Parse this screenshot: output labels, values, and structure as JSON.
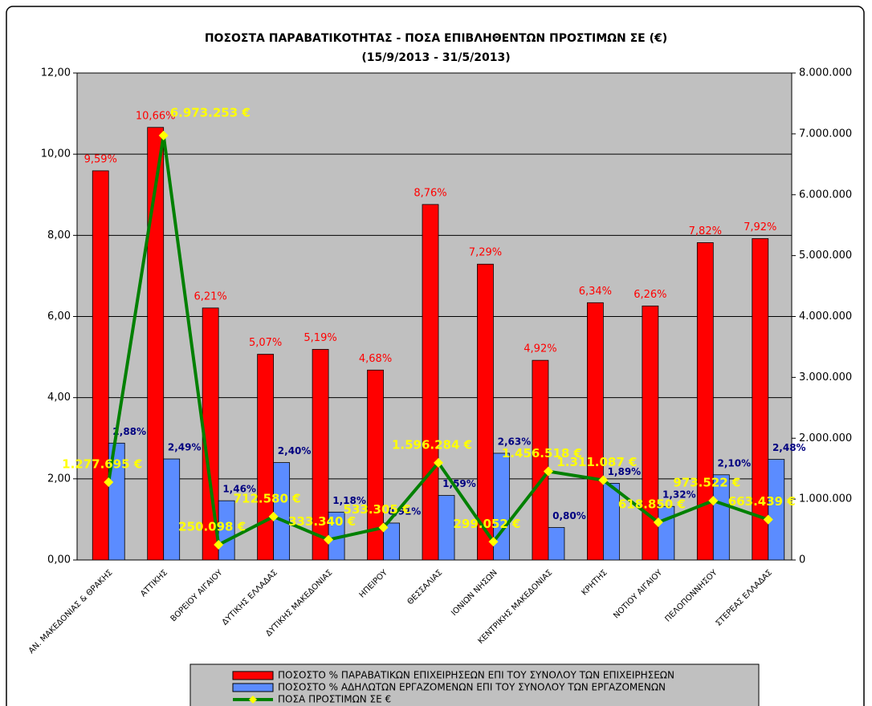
{
  "chart_data": {
    "type": "bar",
    "title": "ΠΟΣΟΣΤΑ ΠΑΡΑΒΑΤΙΚΟΤΗΤΑΣ - ΠΟΣΑ ΕΠΙΒΛΗΘΕΝΤΩΝ ΠΡΟΣΤΙΜΩΝ ΣΕ (€)",
    "subtitle": "(15/9/2013 - 31/5/2013)",
    "categories": [
      "ΑΝ. ΜΑΚΕΔΟΝΙΑΣ & ΘΡΑΚΗΣ",
      "ΑΤΤΙΚΗΣ",
      "ΒΟΡΕΙΟΥ ΑΙΓΑΙΟΥ",
      "ΔΥΤΙΚΗΣ ΕΛΛΑΔΑΣ",
      "ΔΥΤΙΚΗΣ ΜΑΚΕΔΟΝΙΑΣ",
      "ΗΠΕΙΡΟΥ",
      "ΘΕΣΣΑΛΙΑΣ",
      "ΙΟΝΙΩΝ ΝΗΣΩΝ",
      "ΚΕΝΤΡΙΚΗΣ ΜΑΚΕΔΟΝΙΑΣ",
      "ΚΡΗΤΗΣ",
      "ΝΟΤΙΟΥ ΑΙΓΑΙΟΥ",
      "ΠΕΛΟΠΟΝΝΗΣΟΥ",
      "ΣΤΕΡΕΑΣ ΕΛΛΑΔΑΣ"
    ],
    "series": [
      {
        "name": "ΠΟΣΟΣΤΟ % ΠΑΡΑΒΑΤΙΚΩΝ ΕΠΙΧΕΙΡΗΣΕΩΝ ΕΠΙ ΤΟΥ ΣΥΝΟΛΟΥ ΤΩΝ ΕΠΙΧΕΙΡΗΣΕΩΝ",
        "color": "#ff0000",
        "type": "bar",
        "values": [
          9.59,
          10.66,
          6.21,
          5.07,
          5.19,
          4.68,
          8.76,
          7.29,
          4.92,
          6.34,
          6.26,
          7.82,
          7.92
        ],
        "value_labels": [
          "9,59%",
          "10,66%",
          "6,21%",
          "5,07%",
          "5,19%",
          "4,68%",
          "8,76%",
          "7,29%",
          "4,92%",
          "6,34%",
          "6,26%",
          "7,82%",
          "7,92%"
        ]
      },
      {
        "name": "ΠΟΣΟΣΤΟ % ΑΔΗΛΩΤΩΝ ΕΡΓΑΖΟΜΕΝΩΝ ΕΠΙ ΤΟΥ ΣΥΝΟΛΟΥ ΤΩΝ ΕΡΓΑΖΟΜΕΝΩΝ",
        "color": "#5b8cff",
        "type": "bar",
        "values": [
          2.88,
          2.49,
          1.46,
          2.4,
          1.18,
          0.91,
          1.59,
          2.63,
          0.8,
          1.89,
          1.32,
          2.1,
          2.48
        ],
        "value_labels": [
          "2,88%",
          "2,49%",
          "1,46%",
          "2,40%",
          "1,18%",
          "0,91%",
          "1,59%",
          "2,63%",
          "0,80%",
          "1,89%",
          "1,32%",
          "2,10%",
          "2,48%"
        ]
      },
      {
        "name": "ΠΟΣΑ ΠΡΟΣΤΙΜΩΝ ΣΕ €",
        "color": "#008000",
        "type": "line",
        "axis": "y2",
        "values": [
          1277695,
          6973253,
          250098,
          712580,
          333340,
          533305,
          1596284,
          299052,
          1456518,
          1311087,
          618850,
          973522,
          663439
        ],
        "value_labels": [
          "1.277.695 €",
          "6.973.253 €",
          "250.098 €",
          "712.580 €",
          "333.340 €",
          "533.305 €",
          "1.596.284 €",
          "299.052 €",
          "1.456.518 €",
          "1.311.087 €",
          "618.850 €",
          "973.522 €",
          "663.439 €"
        ]
      }
    ],
    "ylim": [
      0,
      12
    ],
    "yticks": [
      {
        "value": 0,
        "label": "0,00"
      },
      {
        "value": 2,
        "label": "2,00"
      },
      {
        "value": 4,
        "label": "4,00"
      },
      {
        "value": 6,
        "label": "6,00"
      },
      {
        "value": 8,
        "label": "8,00"
      },
      {
        "value": 10,
        "label": "10,00"
      },
      {
        "value": 12,
        "label": "12,00"
      }
    ],
    "y2lim": [
      0,
      8000000
    ],
    "y2ticks": [
      0,
      {
        "value": 1000000,
        "label": "1.000.000"
      },
      {
        "value": 2000000,
        "label": "2.000.000"
      },
      {
        "value": 3000000,
        "label": "3.000.000"
      },
      {
        "value": 4000000,
        "label": "4.000.000"
      },
      {
        "value": 5000000,
        "label": "5.000.000"
      },
      {
        "value": 6000000,
        "label": "6.000.000"
      },
      {
        "value": 7000000,
        "label": "7.000.000"
      },
      {
        "value": 8000000,
        "label": "8.000.000"
      }
    ],
    "grid": true,
    "legend": "bottom"
  }
}
